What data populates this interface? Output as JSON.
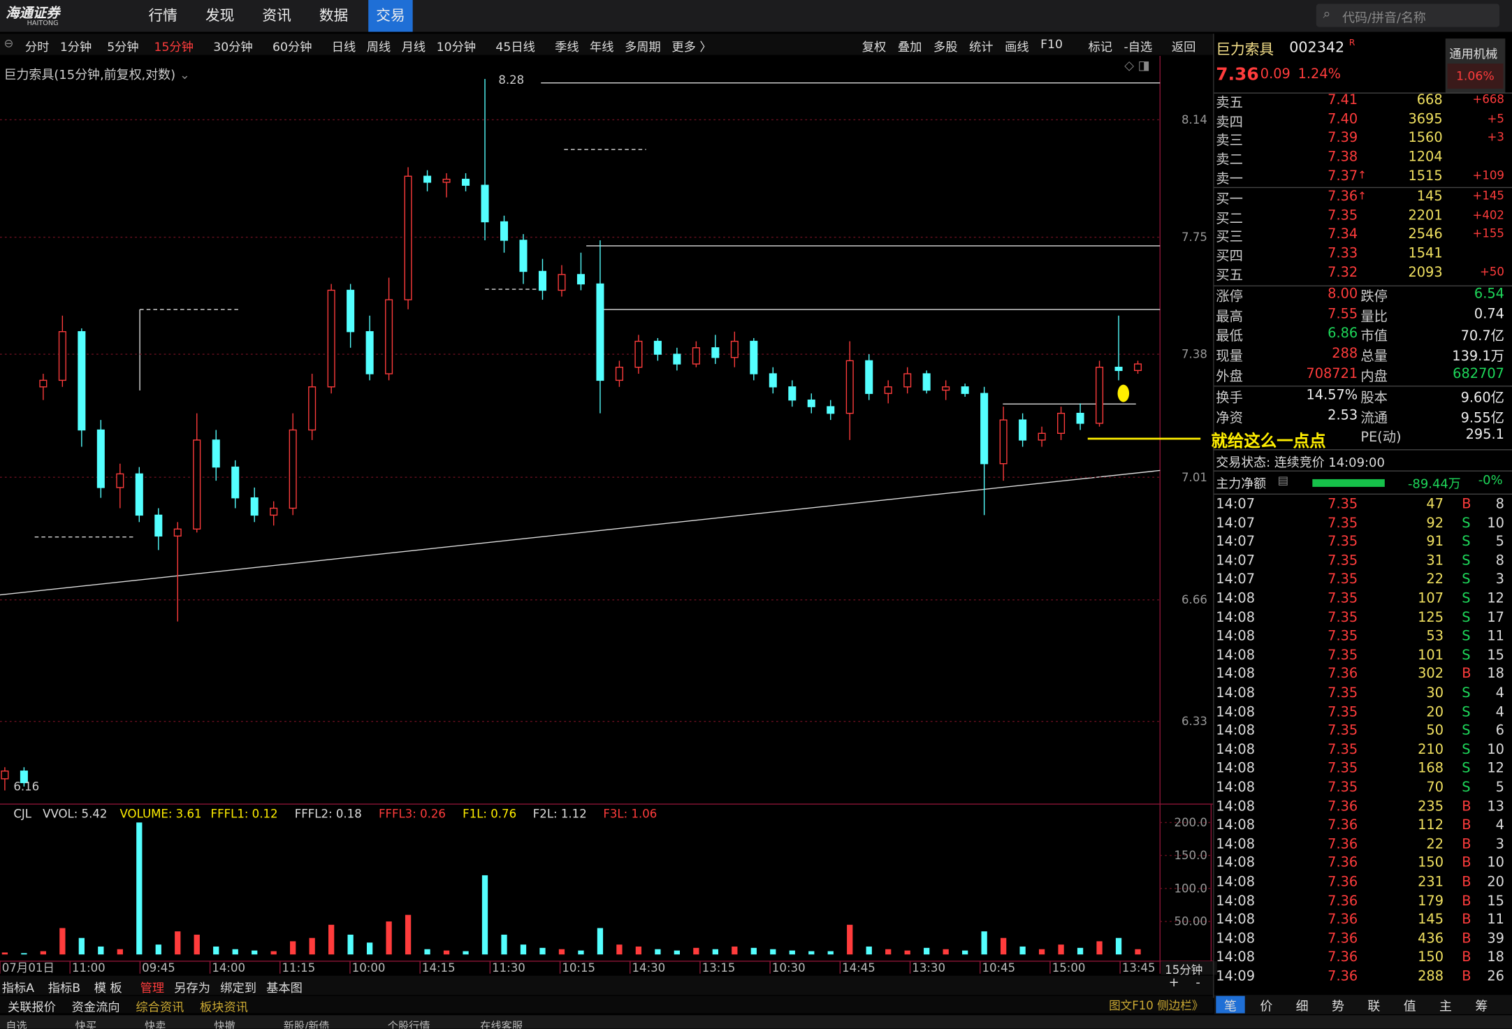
{
  "logo": [
    "海通证券",
    "HAITONG"
  ],
  "nav": {
    "menu": [
      "行情",
      "发现",
      "资讯",
      "数据",
      "交易"
    ],
    "search_placeholder": "代码/拼音/名称"
  },
  "toolbar": {
    "periods": [
      "分时",
      "1分钟",
      "5分钟",
      "15分钟",
      "30分钟",
      "60分钟",
      "日线",
      "周线",
      "月线",
      "10分钟",
      "45日线",
      "季线",
      "年线",
      "多周期",
      "更多 〉"
    ],
    "actions": [
      "复权",
      "叠加",
      "多股",
      "统计",
      "画线",
      "F10",
      "标记",
      "-自选",
      "返回"
    ]
  },
  "chart_data": {
    "type": "candlestick",
    "title": "巨力索具(15分钟,前复权,对数)",
    "log_scale": true,
    "grid": true,
    "ylim": [
      6.12,
      8.36
    ],
    "yticks": [
      6.33,
      6.66,
      7.01,
      7.38,
      7.75,
      8.14
    ],
    "high_label": 8.28,
    "low_label": 6.16,
    "up_color": "#ff3c3c",
    "down_color": "#54ffff",
    "annotation": "就给这么一点点",
    "x_labels": [
      "07月01日",
      "11:00",
      "09:45",
      "14:00",
      "11:15",
      "10:00",
      "14:15",
      "11:30",
      "10:15",
      "14:30",
      "13:15",
      "10:30",
      "14:45",
      "13:30",
      "10:45",
      "15:00",
      "13:45"
    ],
    "ohlc": [
      [
        6.18,
        6.21,
        6.15,
        6.2
      ],
      [
        6.2,
        6.21,
        6.16,
        6.17
      ],
      [
        7.28,
        7.32,
        7.24,
        7.3
      ],
      [
        7.3,
        7.5,
        7.28,
        7.45
      ],
      [
        7.45,
        7.46,
        7.1,
        7.15
      ],
      [
        7.15,
        7.18,
        6.95,
        6.98
      ],
      [
        6.98,
        7.05,
        6.92,
        7.02
      ],
      [
        7.02,
        7.04,
        6.88,
        6.9
      ],
      [
        6.9,
        6.92,
        6.8,
        6.84
      ],
      [
        6.84,
        6.88,
        6.6,
        6.86
      ],
      [
        6.86,
        7.2,
        6.85,
        7.12
      ],
      [
        7.12,
        7.15,
        7.0,
        7.04
      ],
      [
        7.04,
        7.06,
        6.92,
        6.95
      ],
      [
        6.95,
        6.98,
        6.88,
        6.9
      ],
      [
        6.9,
        6.94,
        6.87,
        6.92
      ],
      [
        6.92,
        7.2,
        6.9,
        7.15
      ],
      [
        7.15,
        7.32,
        7.12,
        7.28
      ],
      [
        7.28,
        7.6,
        7.26,
        7.58
      ],
      [
        7.58,
        7.6,
        7.4,
        7.45
      ],
      [
        7.45,
        7.5,
        7.3,
        7.32
      ],
      [
        7.32,
        7.62,
        7.3,
        7.55
      ],
      [
        7.55,
        7.98,
        7.52,
        7.95
      ],
      [
        7.95,
        7.97,
        7.9,
        7.93
      ],
      [
        7.93,
        7.96,
        7.88,
        7.94
      ],
      [
        7.94,
        7.96,
        7.9,
        7.92
      ],
      [
        7.92,
        8.28,
        7.74,
        7.8
      ],
      [
        7.8,
        7.82,
        7.7,
        7.74
      ],
      [
        7.74,
        7.76,
        7.6,
        7.64
      ],
      [
        7.64,
        7.68,
        7.55,
        7.58
      ],
      [
        7.58,
        7.66,
        7.56,
        7.63
      ],
      [
        7.63,
        7.7,
        7.58,
        7.6
      ],
      [
        7.6,
        7.74,
        7.2,
        7.3
      ],
      [
        7.3,
        7.36,
        7.28,
        7.34
      ],
      [
        7.34,
        7.44,
        7.32,
        7.42
      ],
      [
        7.42,
        7.43,
        7.36,
        7.38
      ],
      [
        7.38,
        7.4,
        7.33,
        7.35
      ],
      [
        7.35,
        7.42,
        7.34,
        7.4
      ],
      [
        7.4,
        7.44,
        7.35,
        7.37
      ],
      [
        7.37,
        7.45,
        7.34,
        7.42
      ],
      [
        7.42,
        7.43,
        7.3,
        7.32
      ],
      [
        7.32,
        7.34,
        7.26,
        7.28
      ],
      [
        7.28,
        7.3,
        7.22,
        7.24
      ],
      [
        7.24,
        7.26,
        7.2,
        7.22
      ],
      [
        7.22,
        7.24,
        7.18,
        7.2
      ],
      [
        7.2,
        7.42,
        7.12,
        7.36
      ],
      [
        7.36,
        7.38,
        7.24,
        7.26
      ],
      [
        7.26,
        7.3,
        7.23,
        7.28
      ],
      [
        7.28,
        7.34,
        7.26,
        7.32
      ],
      [
        7.32,
        7.33,
        7.26,
        7.27
      ],
      [
        7.27,
        7.3,
        7.24,
        7.28
      ],
      [
        7.28,
        7.29,
        7.25,
        7.26
      ],
      [
        7.26,
        7.28,
        6.9,
        7.05
      ],
      [
        7.05,
        7.22,
        7.0,
        7.18
      ],
      [
        7.18,
        7.2,
        7.1,
        7.12
      ],
      [
        7.12,
        7.16,
        7.1,
        7.14
      ],
      [
        7.14,
        7.22,
        7.12,
        7.2
      ],
      [
        7.2,
        7.23,
        7.15,
        7.17
      ],
      [
        7.17,
        7.36,
        7.16,
        7.34
      ],
      [
        7.34,
        7.5,
        7.3,
        7.33
      ],
      [
        7.33,
        7.36,
        7.32,
        7.35
      ]
    ],
    "volume": {
      "indicator_labels": [
        "CJL",
        "VVOL: 5.42",
        "VOLUME: 3.61",
        "FFFL1: 0.12",
        "FFFL2: 0.18",
        "FFFL3: 0.26",
        "F1L: 0.76",
        "F2L: 1.12",
        "F3L: 1.06"
      ],
      "ylim": [
        0,
        225
      ],
      "yticks": [
        {
          "value": 50,
          "label": "50.00"
        },
        {
          "value": 100,
          "label": "100.0"
        },
        {
          "value": 150,
          "label": "150.0"
        },
        {
          "value": 200,
          "label": "200.0"
        }
      ],
      "values": [
        3,
        2,
        5,
        40,
        25,
        12,
        8,
        200,
        15,
        35,
        30,
        12,
        8,
        6,
        5,
        20,
        25,
        45,
        30,
        18,
        50,
        60,
        8,
        6,
        5,
        120,
        30,
        15,
        10,
        8,
        6,
        40,
        15,
        12,
        8,
        6,
        10,
        8,
        12,
        10,
        8,
        6,
        5,
        5,
        45,
        12,
        8,
        6,
        10,
        8,
        6,
        35,
        25,
        12,
        8,
        15,
        10,
        20,
        25,
        8
      ]
    },
    "period": "15分钟"
  },
  "quote": {
    "name": "巨力索具",
    "code": "002342",
    "badge": "R",
    "industry": "通用机械",
    "industry_pct": "1.06%",
    "price": "7.36",
    "change": "0.09",
    "change_pct": "1.24%"
  },
  "order_book": {
    "asks": [
      [
        "卖五",
        "7.41",
        "668",
        "+668"
      ],
      [
        "卖四",
        "7.40",
        "3695",
        "+5"
      ],
      [
        "卖三",
        "7.39",
        "1560",
        "+3"
      ],
      [
        "卖二",
        "7.38",
        "1204"
      ],
      [
        "卖一",
        "7.37",
        "1515",
        "+109"
      ]
    ],
    "bids": [
      [
        "买一",
        "7.36",
        "145",
        "+145"
      ],
      [
        "买二",
        "7.35",
        "2201",
        "+402"
      ],
      [
        "买三",
        "7.34",
        "2546",
        "+155"
      ],
      [
        "买四",
        "7.33",
        "1541"
      ],
      [
        "买五",
        "7.32",
        "2093",
        "+50"
      ]
    ]
  },
  "stats": [
    [
      "涨停",
      "8.00",
      "跌停",
      "6.54"
    ],
    [
      "最高",
      "7.55",
      "量比",
      "0.74"
    ],
    [
      "最低",
      "6.86",
      "市值",
      "70.7亿"
    ],
    [
      "现量",
      "288",
      "总量",
      "139.1万"
    ],
    [
      "外盘",
      "708721",
      "内盘",
      "682707"
    ]
  ],
  "stats2": [
    [
      "换手",
      "14.57%",
      "股本",
      "9.60亿"
    ],
    [
      "净资",
      "2.53",
      "流通",
      "9.55亿"
    ],
    [
      "",
      "",
      "PE(动)",
      "295.1"
    ]
  ],
  "status": "交易状态: 连续竞价 14:09:00",
  "fund_flow": [
    "主力净额",
    "-89.44万",
    "-0%"
  ],
  "trades": [
    [
      "14:07",
      "7.35",
      "47",
      "B",
      "8"
    ],
    [
      "14:07",
      "7.35",
      "92",
      "S",
      "10"
    ],
    [
      "14:07",
      "7.35",
      "91",
      "S",
      "5"
    ],
    [
      "14:07",
      "7.35",
      "31",
      "S",
      "8"
    ],
    [
      "14:07",
      "7.35",
      "22",
      "S",
      "3"
    ],
    [
      "14:08",
      "7.35",
      "107",
      "S",
      "12"
    ],
    [
      "14:08",
      "7.35",
      "125",
      "S",
      "17"
    ],
    [
      "14:08",
      "7.35",
      "53",
      "S",
      "11"
    ],
    [
      "14:08",
      "7.35",
      "101",
      "S",
      "15"
    ],
    [
      "14:08",
      "7.36",
      "302",
      "B",
      "18"
    ],
    [
      "14:08",
      "7.35",
      "30",
      "S",
      "4"
    ],
    [
      "14:08",
      "7.35",
      "20",
      "S",
      "4"
    ],
    [
      "14:08",
      "7.35",
      "50",
      "S",
      "6"
    ],
    [
      "14:08",
      "7.35",
      "210",
      "S",
      "10"
    ],
    [
      "14:08",
      "7.35",
      "168",
      "S",
      "12"
    ],
    [
      "14:08",
      "7.35",
      "70",
      "S",
      "5"
    ],
    [
      "14:08",
      "7.36",
      "235",
      "B",
      "13"
    ],
    [
      "14:08",
      "7.36",
      "112",
      "B",
      "4"
    ],
    [
      "14:08",
      "7.36",
      "22",
      "B",
      "3"
    ],
    [
      "14:08",
      "7.36",
      "150",
      "B",
      "10"
    ],
    [
      "14:08",
      "7.36",
      "231",
      "B",
      "20"
    ],
    [
      "14:08",
      "7.36",
      "179",
      "B",
      "15"
    ],
    [
      "14:08",
      "7.36",
      "145",
      "B",
      "11"
    ],
    [
      "14:08",
      "7.36",
      "436",
      "B",
      "39"
    ],
    [
      "14:08",
      "7.36",
      "150",
      "B",
      "18"
    ],
    [
      "14:09",
      "7.36",
      "288",
      "B",
      "26"
    ]
  ],
  "bottom_toolbar": [
    "指标A",
    "指标B",
    "模 板",
    "管理",
    "另存为",
    "绑定到",
    "基本图"
  ],
  "zoom": [
    "+",
    "-"
  ],
  "bottom_links": [
    "关联报价",
    "资金流向",
    "综合资讯",
    "板块资讯"
  ],
  "f10": "图文F10 侧边栏》",
  "right_tabs": [
    "笔",
    "价",
    "细",
    "势",
    "联",
    "值",
    "主",
    "筹"
  ],
  "status_bar": [
    "自选",
    "快买",
    "快卖",
    "快撤",
    "新股/新债",
    "个股行情",
    "在线客服"
  ]
}
